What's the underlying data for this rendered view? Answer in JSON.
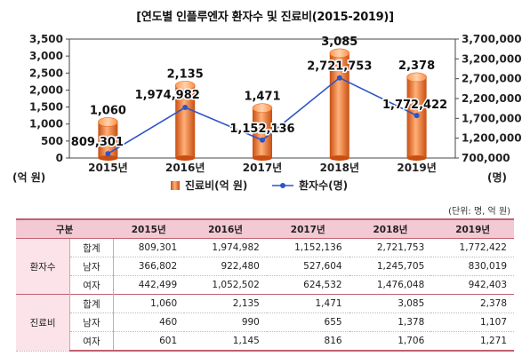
{
  "title": "[연도별 인플루엔자 환자수 및 진료비(2015-2019)]",
  "chart_data": {
    "type": "bar",
    "categories": [
      "2015년",
      "2016년",
      "2017년",
      "2018년",
      "2019년"
    ],
    "series": [
      {
        "name": "진료비(억 원)",
        "type": "bar",
        "axis": "left",
        "values": [
          1060,
          2135,
          1471,
          3085,
          2378
        ],
        "labels": [
          "1,060",
          "2,135",
          "1,471",
          "3,085",
          "2,378"
        ]
      },
      {
        "name": "환자수(명)",
        "type": "line",
        "axis": "right",
        "values": [
          809301,
          1974982,
          1152136,
          2721753,
          1772422
        ],
        "labels": [
          "809,301",
          "1,974,982",
          "1,152,136",
          "2,721,753",
          "1,772,422"
        ]
      }
    ],
    "left_axis": {
      "label": "(억 원)",
      "range": [
        0,
        3500
      ],
      "ticks": [
        "0",
        "500",
        "1,000",
        "1,500",
        "2,000",
        "2,500",
        "3,000",
        "3,500"
      ]
    },
    "right_axis": {
      "label": "(명)",
      "range": [
        700000,
        3700000
      ],
      "ticks": [
        "700,000",
        "1,200,000",
        "1,700,000",
        "2,200,000",
        "2,700,000",
        "3,200,000",
        "3,700,000"
      ]
    },
    "legend_position": "bottom",
    "colors": {
      "bar": "#f07a2a",
      "bar_dark": "#c94e10",
      "bar_light": "#ffb079",
      "line": "#2d55c8"
    }
  },
  "table": {
    "unit": "(단위: 명, 억 원)",
    "headers": [
      "구분",
      "2015년",
      "2016년",
      "2017년",
      "2018년",
      "2019년"
    ],
    "groups": [
      {
        "name": "환자수",
        "rows": [
          {
            "label": "합계",
            "values": [
              "809,301",
              "1,974,982",
              "1,152,136",
              "2,721,753",
              "1,772,422"
            ]
          },
          {
            "label": "남자",
            "values": [
              "366,802",
              "922,480",
              "527,604",
              "1,245,705",
              "830,019"
            ]
          },
          {
            "label": "여자",
            "values": [
              "442,499",
              "1,052,502",
              "624,532",
              "1,476,048",
              "942,403"
            ]
          }
        ]
      },
      {
        "name": "진료비",
        "rows": [
          {
            "label": "합계",
            "values": [
              "1,060",
              "2,135",
              "1,471",
              "3,085",
              "2,378"
            ]
          },
          {
            "label": "남자",
            "values": [
              "460",
              "990",
              "655",
              "1,378",
              "1,107"
            ]
          },
          {
            "label": "여자",
            "values": [
              "601",
              "1,145",
              "816",
              "1,706",
              "1,271"
            ]
          }
        ]
      }
    ]
  }
}
